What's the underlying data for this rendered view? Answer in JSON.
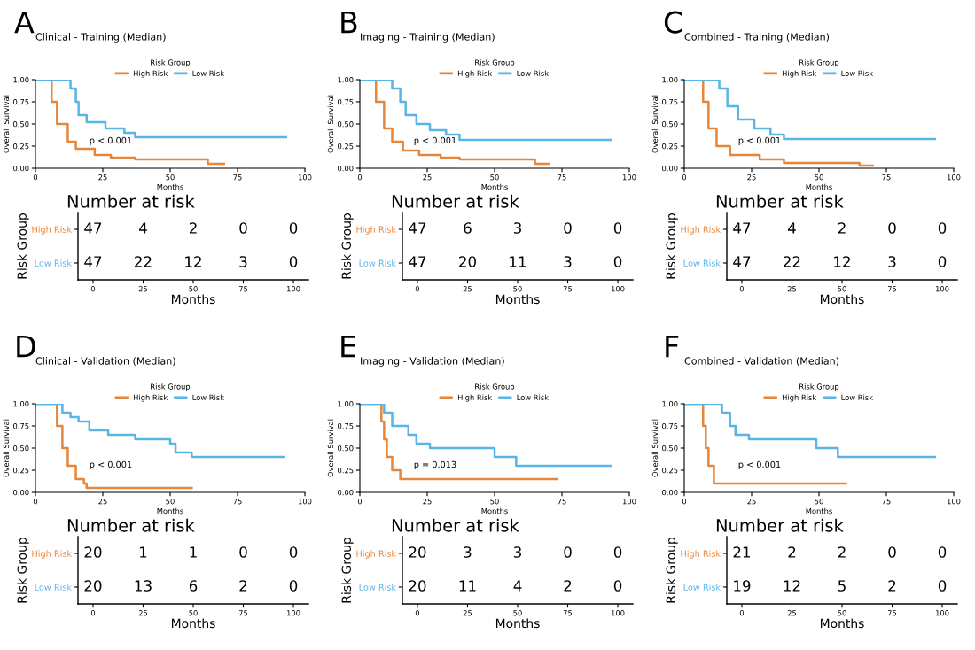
{
  "chart_data": [
    {
      "type": "step",
      "title": "Clinical - Training (Median)",
      "xlabel": "Months",
      "ylabel": "Overall Survival",
      "legend_title": "Risk Group",
      "legend": "top",
      "annotations": [
        "A",
        "p < 0.001"
      ],
      "xlim": [
        0,
        100
      ],
      "xticks": [
        0,
        25,
        50,
        75,
        100
      ],
      "ylim": [
        0,
        1
      ],
      "yticks": [
        {
          "value": 0,
          "label": "0.00"
        },
        {
          "value": 0.25,
          "label": "0.25"
        },
        {
          "value": 0.5,
          "label": "0.50"
        },
        {
          "value": 0.75,
          "label": "0.75"
        },
        {
          "value": 1,
          "label": "1.00"
        }
      ],
      "series": [
        {
          "name": "High Risk",
          "color": "#e6863b",
          "x": [
            0,
            4,
            6,
            8,
            12,
            15,
            22,
            28,
            37,
            64,
            70
          ],
          "values": [
            1,
            1,
            0.75,
            0.5,
            0.3,
            0.22,
            0.15,
            0.12,
            0.1,
            0.05,
            0.05
          ]
        },
        {
          "name": "Low Risk",
          "color": "#5ab4e5",
          "x": [
            0,
            8,
            13,
            15,
            16,
            19,
            26,
            33,
            37,
            93
          ],
          "values": [
            1,
            1,
            0.9,
            0.75,
            0.6,
            0.52,
            0.45,
            0.4,
            0.35,
            0.35
          ]
        }
      ]
    },
    {
      "type": "heatmap",
      "title": "Number at risk",
      "xlabel": "Months",
      "ylabel": "Risk Group",
      "categories": [
        "0",
        "25",
        "50",
        "75",
        "100"
      ],
      "y_categories": [
        "High Risk",
        "Low Risk"
      ],
      "colors": [
        "#e6863b",
        "#5ab4e5"
      ],
      "data_labels": true,
      "cells": [
        [
          47,
          4,
          2,
          0,
          0
        ],
        [
          47,
          22,
          12,
          3,
          0
        ]
      ]
    },
    {
      "type": "step",
      "title": "Imaging - Training (Median)",
      "xlabel": "Months",
      "ylabel": "Overall Survival",
      "legend_title": "Risk Group",
      "legend": "top",
      "annotations": [
        "B",
        "p < 0.001"
      ],
      "xlim": [
        0,
        100
      ],
      "xticks": [
        0,
        25,
        50,
        75,
        100
      ],
      "ylim": [
        0,
        1
      ],
      "yticks": [
        {
          "value": 0,
          "label": "0.00"
        },
        {
          "value": 0.25,
          "label": "0.25"
        },
        {
          "value": 0.5,
          "label": "0.50"
        },
        {
          "value": 0.75,
          "label": "0.75"
        },
        {
          "value": 1,
          "label": "1.00"
        }
      ],
      "series": [
        {
          "name": "High Risk",
          "color": "#e6863b",
          "x": [
            0,
            4,
            6,
            9,
            12,
            16,
            22,
            30,
            37,
            65,
            70
          ],
          "values": [
            1,
            1,
            0.75,
            0.45,
            0.3,
            0.2,
            0.15,
            0.12,
            0.1,
            0.05,
            0.05
          ]
        },
        {
          "name": "Low Risk",
          "color": "#5ab4e5",
          "x": [
            0,
            7,
            12,
            15,
            17,
            21,
            26,
            32,
            37,
            93
          ],
          "values": [
            1,
            1,
            0.9,
            0.75,
            0.6,
            0.5,
            0.43,
            0.38,
            0.32,
            0.32
          ]
        }
      ]
    },
    {
      "type": "heatmap",
      "title": "Number at risk",
      "xlabel": "Months",
      "ylabel": "Risk Group",
      "categories": [
        "0",
        "25",
        "50",
        "75",
        "100"
      ],
      "y_categories": [
        "High Risk",
        "Low Risk"
      ],
      "colors": [
        "#e6863b",
        "#5ab4e5"
      ],
      "data_labels": true,
      "cells": [
        [
          47,
          6,
          3,
          0,
          0
        ],
        [
          47,
          20,
          11,
          3,
          0
        ]
      ]
    },
    {
      "type": "step",
      "title": "Combined - Training (Median)",
      "xlabel": "Months",
      "ylabel": "Overall Survival",
      "legend_title": "Risk Group",
      "legend": "top",
      "annotations": [
        "C",
        "p < 0.001"
      ],
      "xlim": [
        0,
        100
      ],
      "xticks": [
        0,
        25,
        50,
        75,
        100
      ],
      "ylim": [
        0,
        1
      ],
      "yticks": [
        {
          "value": 0,
          "label": "0.00"
        },
        {
          "value": 0.25,
          "label": "0.25"
        },
        {
          "value": 0.5,
          "label": "0.50"
        },
        {
          "value": 0.75,
          "label": "0.75"
        },
        {
          "value": 1,
          "label": "1.00"
        }
      ],
      "series": [
        {
          "name": "High Risk",
          "color": "#e6863b",
          "x": [
            0,
            4,
            7,
            9,
            12,
            17,
            28,
            37,
            65,
            70
          ],
          "values": [
            1,
            1,
            0.75,
            0.45,
            0.25,
            0.15,
            0.1,
            0.06,
            0.03,
            0.03
          ]
        },
        {
          "name": "Low Risk",
          "color": "#5ab4e5",
          "x": [
            0,
            10,
            13,
            16,
            20,
            26,
            32,
            37,
            93
          ],
          "values": [
            1,
            1,
            0.9,
            0.7,
            0.55,
            0.45,
            0.38,
            0.33,
            0.33
          ]
        }
      ]
    },
    {
      "type": "heatmap",
      "title": "Number at risk",
      "xlabel": "Months",
      "ylabel": "Risk Group",
      "categories": [
        "0",
        "25",
        "50",
        "75",
        "100"
      ],
      "y_categories": [
        "High Risk",
        "Low Risk"
      ],
      "colors": [
        "#e6863b",
        "#5ab4e5"
      ],
      "data_labels": true,
      "cells": [
        [
          47,
          4,
          2,
          0,
          0
        ],
        [
          47,
          22,
          12,
          3,
          0
        ]
      ]
    },
    {
      "type": "step",
      "title": "Clinical - Validation (Median)",
      "xlabel": "Months",
      "ylabel": "Overall Survival",
      "legend_title": "Risk Group",
      "legend": "top",
      "annotations": [
        "D",
        "p < 0.001"
      ],
      "xlim": [
        0,
        100
      ],
      "xticks": [
        0,
        25,
        50,
        75,
        100
      ],
      "ylim": [
        0,
        1
      ],
      "yticks": [
        {
          "value": 0,
          "label": "0.00"
        },
        {
          "value": 0.25,
          "label": "0.25"
        },
        {
          "value": 0.5,
          "label": "0.50"
        },
        {
          "value": 0.75,
          "label": "0.75"
        },
        {
          "value": 1,
          "label": "1.00"
        }
      ],
      "series": [
        {
          "name": "High Risk",
          "color": "#e6863b",
          "x": [
            0,
            5,
            8,
            10,
            12,
            15,
            18,
            19,
            58
          ],
          "values": [
            1,
            1,
            0.75,
            0.5,
            0.3,
            0.15,
            0.1,
            0.05,
            0.05
          ]
        },
        {
          "name": "Low Risk",
          "color": "#5ab4e5",
          "x": [
            0,
            8,
            10,
            13,
            16,
            20,
            27,
            37,
            50,
            52,
            58,
            92
          ],
          "values": [
            1,
            1,
            0.9,
            0.85,
            0.8,
            0.7,
            0.65,
            0.6,
            0.55,
            0.45,
            0.4,
            0.4
          ]
        }
      ]
    },
    {
      "type": "heatmap",
      "title": "Number at risk",
      "xlabel": "Months",
      "ylabel": "Risk Group",
      "categories": [
        "0",
        "25",
        "50",
        "75",
        "100"
      ],
      "y_categories": [
        "High Risk",
        "Low Risk"
      ],
      "colors": [
        "#e6863b",
        "#5ab4e5"
      ],
      "data_labels": true,
      "cells": [
        [
          20,
          1,
          1,
          0,
          0
        ],
        [
          20,
          13,
          6,
          2,
          0
        ]
      ]
    },
    {
      "type": "step",
      "title": "Imaging - Validation (Median)",
      "xlabel": "Months",
      "ylabel": "Overall Survival",
      "legend_title": "Risk Group",
      "legend": "top",
      "annotations": [
        "E",
        "p = 0.013"
      ],
      "xlim": [
        0,
        100
      ],
      "xticks": [
        0,
        25,
        50,
        75,
        100
      ],
      "ylim": [
        0,
        1
      ],
      "yticks": [
        {
          "value": 0,
          "label": "0.00"
        },
        {
          "value": 0.25,
          "label": "0.25"
        },
        {
          "value": 0.5,
          "label": "0.50"
        },
        {
          "value": 0.75,
          "label": "0.75"
        },
        {
          "value": 1,
          "label": "1.00"
        }
      ],
      "series": [
        {
          "name": "High Risk",
          "color": "#e6863b",
          "x": [
            0,
            6,
            8,
            9,
            10,
            12,
            15,
            73
          ],
          "values": [
            1,
            1,
            0.8,
            0.6,
            0.4,
            0.25,
            0.15,
            0.15
          ]
        },
        {
          "name": "Low Risk",
          "color": "#5ab4e5",
          "x": [
            0,
            6,
            9,
            12,
            18,
            21,
            26,
            50,
            58,
            93
          ],
          "values": [
            1,
            1,
            0.9,
            0.75,
            0.65,
            0.55,
            0.5,
            0.4,
            0.3,
            0.3
          ]
        }
      ]
    },
    {
      "type": "heatmap",
      "title": "Number at risk",
      "xlabel": "Months",
      "ylabel": "Risk Group",
      "categories": [
        "0",
        "25",
        "50",
        "75",
        "100"
      ],
      "y_categories": [
        "High Risk",
        "Low Risk"
      ],
      "colors": [
        "#e6863b",
        "#5ab4e5"
      ],
      "data_labels": true,
      "cells": [
        [
          20,
          3,
          3,
          0,
          0
        ],
        [
          20,
          11,
          4,
          2,
          0
        ]
      ]
    },
    {
      "type": "step",
      "title": "Combined - Validation (Median)",
      "xlabel": "Months",
      "ylabel": "Overall Survival",
      "legend_title": "Risk Group",
      "legend": "top",
      "annotations": [
        "F",
        "p < 0.001"
      ],
      "xlim": [
        0,
        100
      ],
      "xticks": [
        0,
        25,
        50,
        75,
        100
      ],
      "ylim": [
        0,
        1
      ],
      "yticks": [
        {
          "value": 0,
          "label": "0.00"
        },
        {
          "value": 0.25,
          "label": "0.25"
        },
        {
          "value": 0.5,
          "label": "0.50"
        },
        {
          "value": 0.75,
          "label": "0.75"
        },
        {
          "value": 1,
          "label": "1.00"
        }
      ],
      "series": [
        {
          "name": "High Risk",
          "color": "#e6863b",
          "x": [
            0,
            5,
            7,
            8,
            9,
            11,
            60
          ],
          "values": [
            1,
            1,
            0.75,
            0.5,
            0.3,
            0.1,
            0.1
          ]
        },
        {
          "name": "Low Risk",
          "color": "#5ab4e5",
          "x": [
            0,
            12,
            14,
            17,
            19,
            24,
            49,
            57,
            93
          ],
          "values": [
            1,
            1,
            0.9,
            0.75,
            0.65,
            0.6,
            0.5,
            0.4,
            0.4
          ]
        }
      ]
    },
    {
      "type": "heatmap",
      "title": "Number at risk",
      "xlabel": "Months",
      "ylabel": "Risk Group",
      "categories": [
        "0",
        "25",
        "50",
        "75",
        "100"
      ],
      "y_categories": [
        "High Risk",
        "Low Risk"
      ],
      "colors": [
        "#e6863b",
        "#5ab4e5"
      ],
      "data_labels": true,
      "cells": [
        [
          21,
          2,
          2,
          0,
          0
        ],
        [
          19,
          12,
          5,
          2,
          0
        ]
      ]
    }
  ]
}
